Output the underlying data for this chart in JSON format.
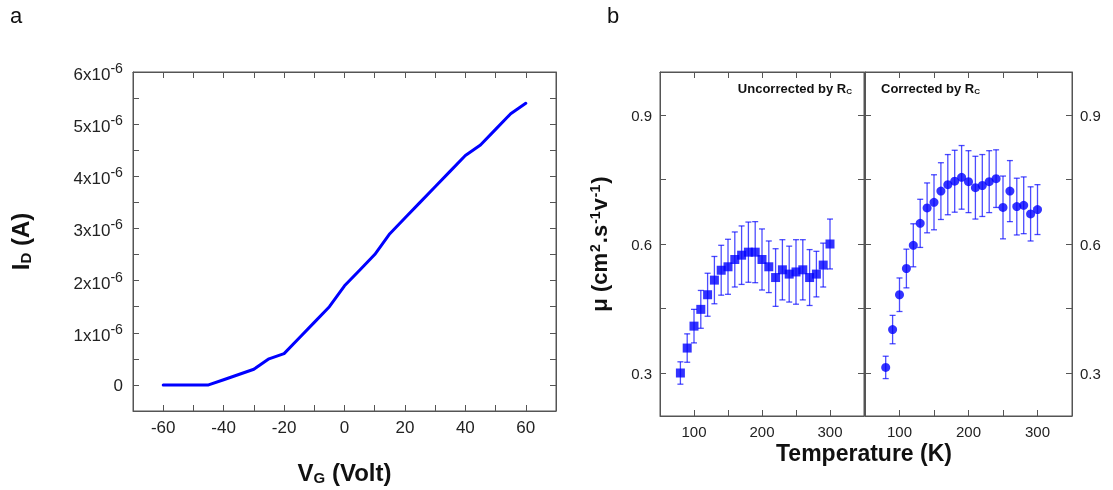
{
  "chart_data": [
    {
      "type": "line",
      "xlabel": "V$_{G}$ (Volt)",
      "ylabel": "I$_{D}$ (A)",
      "annotations": [
        "a"
      ],
      "x": [
        -60,
        -55,
        -50,
        -45,
        -40,
        -35,
        -30,
        -25,
        -20,
        -15,
        -10,
        -5,
        0,
        5,
        10,
        15,
        20,
        25,
        30,
        35,
        40,
        45,
        50,
        55,
        60
      ],
      "series": [
        {
          "color": "#0000ff",
          "values": [
            0,
            0,
            0,
            0,
            1e-07,
            2e-07,
            3e-07,
            5e-07,
            6e-07,
            9e-07,
            1.2e-06,
            1.5e-06,
            1.9e-06,
            2.2e-06,
            2.5e-06,
            2.9e-06,
            3.2e-06,
            3.5e-06,
            3.8e-06,
            4.1e-06,
            4.4e-06,
            4.6e-06,
            4.9e-06,
            5.2e-06,
            5.4e-06
          ]
        }
      ],
      "xlim": [
        -70,
        70
      ],
      "xticks": [
        {
          "value": -70,
          "label": null
        },
        -60,
        {
          "value": -50,
          "label": null
        },
        -40,
        {
          "value": -30,
          "label": null
        },
        -20,
        {
          "value": -10,
          "label": null
        },
        0,
        {
          "value": 10,
          "label": null
        },
        20,
        {
          "value": 30,
          "label": null
        },
        40,
        {
          "value": 50,
          "label": null
        },
        60,
        {
          "value": 70,
          "label": null
        }
      ],
      "ylim": [
        -5e-07,
        6e-06
      ],
      "yticks": [
        {
          "value": -5e-07,
          "label": null
        },
        0,
        {
          "value": 5e-07,
          "label": null
        },
        {
          "value": 1e-06,
          "label": "1x10$^{-6}$"
        },
        {
          "value": 1.5e-06,
          "label": null
        },
        {
          "value": 2e-06,
          "label": "2x10$^{-6}$"
        },
        {
          "value": 2.5e-06,
          "label": null
        },
        {
          "value": 3e-06,
          "label": "3x10$^{-6}$"
        },
        {
          "value": 3.5e-06,
          "label": null
        },
        {
          "value": 4e-06,
          "label": "4x10$^{-6}$"
        },
        {
          "value": 4.5e-06,
          "label": null
        },
        {
          "value": 5e-06,
          "label": "5x10$^{-6}$"
        },
        {
          "value": 5.5e-06,
          "label": null
        },
        {
          "value": 6e-06,
          "label": "6x10$^{-6}$"
        }
      ],
      "grid": false,
      "marker": "none",
      "line_style": "solid"
    },
    {
      "type": "scatter",
      "title": "Uncorrected by R$_{C}$",
      "xlabel": "Temperature (K)",
      "ylabel": "μ (cm$^{2}$.s$^{-1}$v$^{-1}$)",
      "annotations": [
        "b"
      ],
      "x": [
        80,
        90,
        100,
        110,
        120,
        130,
        140,
        150,
        160,
        170,
        180,
        190,
        200,
        210,
        220,
        230,
        240,
        250,
        260,
        270,
        280,
        290,
        300
      ],
      "series": [
        {
          "color": "#0000ff",
          "values": [
            0.3,
            0.358,
            0.409,
            0.448,
            0.482,
            0.516,
            0.539,
            0.547,
            0.564,
            0.574,
            0.581,
            0.581,
            0.564,
            0.547,
            0.522,
            0.54,
            0.53,
            0.535,
            0.54,
            0.522,
            0.53,
            0.551,
            0.6
          ],
          "errors": [
            0.026,
            0.033,
            0.039,
            0.044,
            0.05,
            0.055,
            0.058,
            0.064,
            0.064,
            0.068,
            0.07,
            0.071,
            0.071,
            0.06,
            0.067,
            0.07,
            0.065,
            0.075,
            0.07,
            0.065,
            0.053,
            0.051,
            0.058
          ]
        }
      ],
      "xlim": [
        50,
        350
      ],
      "xticks": [
        100,
        {
          "value": 150,
          "label": null
        },
        200,
        {
          "value": 250,
          "label": null
        },
        300
      ],
      "ylim": [
        0.2,
        1.0
      ],
      "yticks": [
        0.3,
        {
          "value": 0.45,
          "label": null
        },
        0.6,
        {
          "value": 0.75,
          "label": null
        },
        0.9
      ],
      "grid": false,
      "marker": "square"
    },
    {
      "type": "scatter",
      "title": "Corrected by R$_{C}$",
      "x": [
        80,
        90,
        100,
        110,
        120,
        130,
        140,
        150,
        160,
        170,
        180,
        190,
        200,
        210,
        220,
        230,
        240,
        250,
        260,
        270,
        280,
        290,
        300
      ],
      "series": [
        {
          "color": "#0000ff",
          "axis": "y2",
          "values": [
            0.313,
            0.401,
            0.482,
            0.543,
            0.597,
            0.648,
            0.684,
            0.697,
            0.723,
            0.738,
            0.746,
            0.755,
            0.745,
            0.731,
            0.736,
            0.745,
            0.752,
            0.685,
            0.723,
            0.687,
            0.69,
            0.67,
            0.68
          ],
          "errors": [
            0.026,
            0.033,
            0.039,
            0.045,
            0.05,
            0.056,
            0.058,
            0.064,
            0.066,
            0.07,
            0.072,
            0.074,
            0.072,
            0.073,
            0.072,
            0.072,
            0.067,
            0.073,
            0.071,
            0.066,
            0.066,
            0.063,
            0.058
          ]
        }
      ],
      "xlim": [
        50,
        350
      ],
      "xticks": [
        100,
        {
          "value": 150,
          "label": null
        },
        200,
        {
          "value": 250,
          "label": null
        },
        300
      ],
      "y2lim": [
        0.2,
        1.0
      ],
      "y2ticks": [
        0.3,
        {
          "value": 0.45,
          "label": null
        },
        0.6,
        {
          "value": 0.75,
          "label": null
        },
        0.9
      ],
      "grid": false,
      "marker": "circle"
    }
  ]
}
